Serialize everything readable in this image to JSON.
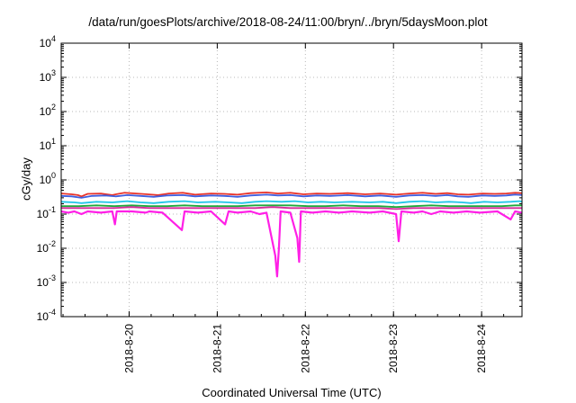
{
  "chart_data": {
    "type": "line",
    "title": "/data/run/goesPlots/archive/2018-08-24/11:00/bryn/../bryn/5daysMoon.plot",
    "xlabel": "Coordinated Universal Time (UTC)",
    "ylabel": "cGy/day",
    "y_scale": "log",
    "ylim": [
      "1e-4",
      "1e4"
    ],
    "y_tick_exponents": [
      -4,
      -3,
      -2,
      -1,
      0,
      1,
      2,
      3,
      4
    ],
    "xlim": [
      "2018-08-19 05:30",
      "2018-08-24 11:00"
    ],
    "x_ticks": [
      "2018-8-20",
      "2018-8-21",
      "2018-8-22",
      "2018-8-23",
      "2018-8-24"
    ],
    "grid": true,
    "legend": "none",
    "series": [
      {
        "color": "#e8332a",
        "baseline": 0.38,
        "values": [
          [
            0.0,
            0.4
          ],
          [
            0.12,
            0.38
          ],
          [
            0.19,
            0.36
          ],
          [
            0.23,
            0.33
          ],
          [
            0.3,
            0.39
          ],
          [
            0.45,
            0.4
          ],
          [
            0.58,
            0.36
          ],
          [
            0.62,
            0.38
          ],
          [
            0.72,
            0.42
          ],
          [
            0.85,
            0.4
          ],
          [
            0.98,
            0.38
          ],
          [
            1.1,
            0.36
          ],
          [
            1.22,
            0.4
          ],
          [
            1.38,
            0.42
          ],
          [
            1.52,
            0.37
          ],
          [
            1.7,
            0.4
          ],
          [
            1.85,
            0.39
          ],
          [
            2.0,
            0.37
          ],
          [
            2.15,
            0.41
          ],
          [
            2.33,
            0.43
          ],
          [
            2.46,
            0.4
          ],
          [
            2.6,
            0.42
          ],
          [
            2.75,
            0.38
          ],
          [
            2.9,
            0.4
          ],
          [
            3.05,
            0.39
          ],
          [
            3.25,
            0.41
          ],
          [
            3.45,
            0.38
          ],
          [
            3.62,
            0.4
          ],
          [
            3.8,
            0.37
          ],
          [
            3.95,
            0.4
          ],
          [
            4.1,
            0.42
          ],
          [
            4.25,
            0.39
          ],
          [
            4.38,
            0.41
          ],
          [
            4.5,
            0.38
          ],
          [
            4.62,
            0.37
          ],
          [
            4.78,
            0.4
          ],
          [
            4.92,
            0.39
          ],
          [
            5.05,
            0.4
          ],
          [
            5.15,
            0.42
          ],
          [
            5.25,
            0.41
          ]
        ]
      },
      {
        "color": "#3f5fe0",
        "baseline": 0.33,
        "values": [
          [
            0.0,
            0.34
          ],
          [
            0.12,
            0.33
          ],
          [
            0.23,
            0.3
          ],
          [
            0.35,
            0.34
          ],
          [
            0.5,
            0.35
          ],
          [
            0.62,
            0.33
          ],
          [
            0.75,
            0.36
          ],
          [
            0.9,
            0.34
          ],
          [
            1.05,
            0.32
          ],
          [
            1.2,
            0.35
          ],
          [
            1.38,
            0.36
          ],
          [
            1.52,
            0.33
          ],
          [
            1.7,
            0.35
          ],
          [
            1.85,
            0.34
          ],
          [
            2.0,
            0.32
          ],
          [
            2.15,
            0.35
          ],
          [
            2.33,
            0.37
          ],
          [
            2.46,
            0.35
          ],
          [
            2.6,
            0.36
          ],
          [
            2.75,
            0.33
          ],
          [
            2.9,
            0.35
          ],
          [
            3.05,
            0.34
          ],
          [
            3.25,
            0.36
          ],
          [
            3.45,
            0.33
          ],
          [
            3.62,
            0.35
          ],
          [
            3.8,
            0.32
          ],
          [
            3.95,
            0.35
          ],
          [
            4.1,
            0.36
          ],
          [
            4.25,
            0.34
          ],
          [
            4.38,
            0.36
          ],
          [
            4.5,
            0.33
          ],
          [
            4.62,
            0.32
          ],
          [
            4.78,
            0.35
          ],
          [
            4.92,
            0.34
          ],
          [
            5.05,
            0.35
          ],
          [
            5.15,
            0.37
          ],
          [
            5.25,
            0.36
          ]
        ]
      },
      {
        "color": "#22c6e8",
        "baseline": 0.22,
        "values": [
          [
            0.0,
            0.23
          ],
          [
            0.15,
            0.22
          ],
          [
            0.23,
            0.21
          ],
          [
            0.4,
            0.23
          ],
          [
            0.58,
            0.22
          ],
          [
            0.75,
            0.24
          ],
          [
            0.9,
            0.22
          ],
          [
            1.05,
            0.21
          ],
          [
            1.22,
            0.23
          ],
          [
            1.4,
            0.24
          ],
          [
            1.55,
            0.22
          ],
          [
            1.75,
            0.23
          ],
          [
            1.9,
            0.22
          ],
          [
            2.05,
            0.21
          ],
          [
            2.2,
            0.23
          ],
          [
            2.33,
            0.24
          ],
          [
            2.5,
            0.23
          ],
          [
            2.65,
            0.24
          ],
          [
            2.8,
            0.22
          ],
          [
            2.95,
            0.23
          ],
          [
            3.1,
            0.22
          ],
          [
            3.3,
            0.23
          ],
          [
            3.5,
            0.22
          ],
          [
            3.65,
            0.23
          ],
          [
            3.8,
            0.21
          ],
          [
            3.95,
            0.23
          ],
          [
            4.1,
            0.24
          ],
          [
            4.25,
            0.22
          ],
          [
            4.4,
            0.23
          ],
          [
            4.55,
            0.22
          ],
          [
            4.65,
            0.21
          ],
          [
            4.8,
            0.23
          ],
          [
            4.95,
            0.22
          ],
          [
            5.1,
            0.23
          ],
          [
            5.2,
            0.24
          ],
          [
            5.25,
            0.23
          ]
        ]
      },
      {
        "color": "#1fa83a",
        "baseline": 0.17,
        "values": [
          [
            0.0,
            0.17
          ],
          [
            0.2,
            0.17
          ],
          [
            0.4,
            0.18
          ],
          [
            0.6,
            0.17
          ],
          [
            0.8,
            0.18
          ],
          [
            1.0,
            0.17
          ],
          [
            1.2,
            0.17
          ],
          [
            1.4,
            0.18
          ],
          [
            1.6,
            0.17
          ],
          [
            1.8,
            0.17
          ],
          [
            2.0,
            0.17
          ],
          [
            2.2,
            0.18
          ],
          [
            2.4,
            0.18
          ],
          [
            2.6,
            0.18
          ],
          [
            2.8,
            0.17
          ],
          [
            3.0,
            0.17
          ],
          [
            3.2,
            0.18
          ],
          [
            3.4,
            0.17
          ],
          [
            3.6,
            0.17
          ],
          [
            3.8,
            0.16
          ],
          [
            4.0,
            0.17
          ],
          [
            4.2,
            0.18
          ],
          [
            4.4,
            0.17
          ],
          [
            4.6,
            0.17
          ],
          [
            4.8,
            0.17
          ],
          [
            5.0,
            0.17
          ],
          [
            5.15,
            0.18
          ],
          [
            5.25,
            0.18
          ]
        ]
      },
      {
        "color": "#d62b9c",
        "baseline": 0.15,
        "values": [
          [
            0.0,
            0.15
          ],
          [
            0.2,
            0.15
          ],
          [
            0.4,
            0.15
          ],
          [
            0.6,
            0.15
          ],
          [
            0.8,
            0.16
          ],
          [
            1.0,
            0.15
          ],
          [
            1.2,
            0.15
          ],
          [
            1.4,
            0.15
          ],
          [
            1.6,
            0.15
          ],
          [
            1.8,
            0.15
          ],
          [
            2.0,
            0.15
          ],
          [
            2.2,
            0.15
          ],
          [
            2.4,
            0.16
          ],
          [
            2.6,
            0.15
          ],
          [
            2.8,
            0.15
          ],
          [
            3.0,
            0.15
          ],
          [
            3.2,
            0.15
          ],
          [
            3.4,
            0.15
          ],
          [
            3.6,
            0.15
          ],
          [
            3.8,
            0.14
          ],
          [
            4.0,
            0.15
          ],
          [
            4.2,
            0.15
          ],
          [
            4.4,
            0.15
          ],
          [
            4.6,
            0.15
          ],
          [
            4.8,
            0.15
          ],
          [
            5.0,
            0.15
          ],
          [
            5.25,
            0.15
          ]
        ]
      },
      {
        "color": "#ff1fe6",
        "baseline": 0.12,
        "values": [
          [
            0.0,
            0.12
          ],
          [
            0.08,
            0.11
          ],
          [
            0.15,
            0.12
          ],
          [
            0.23,
            0.1
          ],
          [
            0.3,
            0.12
          ],
          [
            0.45,
            0.11
          ],
          [
            0.58,
            0.12
          ],
          [
            0.61,
            0.05
          ],
          [
            0.63,
            0.12
          ],
          [
            0.8,
            0.12
          ],
          [
            0.96,
            0.11
          ],
          [
            1.0,
            0.12
          ],
          [
            1.15,
            0.11
          ],
          [
            1.37,
            0.034
          ],
          [
            1.4,
            0.12
          ],
          [
            1.55,
            0.11
          ],
          [
            1.7,
            0.12
          ],
          [
            1.86,
            0.05
          ],
          [
            1.9,
            0.12
          ],
          [
            2.0,
            0.11
          ],
          [
            2.15,
            0.12
          ],
          [
            2.25,
            0.1
          ],
          [
            2.33,
            0.11
          ],
          [
            2.43,
            0.006
          ],
          [
            2.45,
            0.0015
          ],
          [
            2.47,
            0.01
          ],
          [
            2.49,
            0.12
          ],
          [
            2.6,
            0.11
          ],
          [
            2.68,
            0.02
          ],
          [
            2.7,
            0.004
          ],
          [
            2.72,
            0.12
          ],
          [
            2.85,
            0.11
          ],
          [
            3.0,
            0.12
          ],
          [
            3.15,
            0.11
          ],
          [
            3.3,
            0.12
          ],
          [
            3.5,
            0.11
          ],
          [
            3.65,
            0.12
          ],
          [
            3.8,
            0.1
          ],
          [
            3.83,
            0.016
          ],
          [
            3.86,
            0.12
          ],
          [
            4.0,
            0.11
          ],
          [
            4.1,
            0.12
          ],
          [
            4.2,
            0.1
          ],
          [
            4.3,
            0.12
          ],
          [
            4.45,
            0.11
          ],
          [
            4.6,
            0.12
          ],
          [
            4.75,
            0.11
          ],
          [
            4.95,
            0.12
          ],
          [
            5.1,
            0.07
          ],
          [
            5.15,
            0.12
          ],
          [
            5.25,
            0.11
          ]
        ]
      }
    ]
  }
}
